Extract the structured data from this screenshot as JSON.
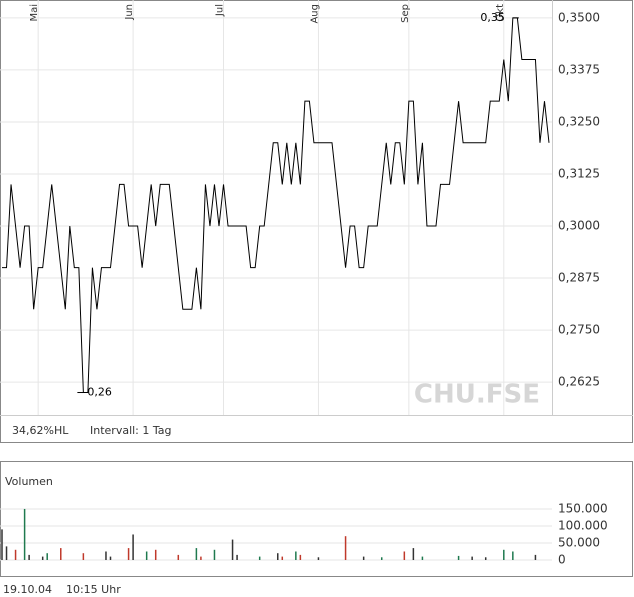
{
  "chart_data": [
    {
      "type": "line",
      "watermark": "CHU.FSE",
      "color": "#000000",
      "values": [
        0.29,
        0.29,
        0.31,
        0.3,
        0.29,
        0.3,
        0.3,
        0.28,
        0.29,
        0.29,
        0.3,
        0.31,
        0.3,
        0.29,
        0.28,
        0.3,
        0.29,
        0.29,
        0.26,
        0.26,
        0.29,
        0.28,
        0.29,
        0.29,
        0.29,
        0.3,
        0.31,
        0.31,
        0.3,
        0.3,
        0.3,
        0.29,
        0.3,
        0.31,
        0.3,
        0.31,
        0.31,
        0.31,
        0.3,
        0.29,
        0.28,
        0.28,
        0.28,
        0.29,
        0.28,
        0.31,
        0.3,
        0.31,
        0.3,
        0.31,
        0.3,
        0.3,
        0.3,
        0.3,
        0.3,
        0.29,
        0.29,
        0.3,
        0.3,
        0.31,
        0.32,
        0.32,
        0.31,
        0.32,
        0.31,
        0.32,
        0.31,
        0.33,
        0.33,
        0.32,
        0.32,
        0.32,
        0.32,
        0.32,
        0.31,
        0.3,
        0.29,
        0.3,
        0.3,
        0.29,
        0.29,
        0.3,
        0.3,
        0.3,
        0.31,
        0.32,
        0.31,
        0.32,
        0.32,
        0.31,
        0.33,
        0.33,
        0.31,
        0.32,
        0.3,
        0.3,
        0.3,
        0.31,
        0.31,
        0.31,
        0.32,
        0.33,
        0.32,
        0.32,
        0.32,
        0.32,
        0.32,
        0.32,
        0.33,
        0.33,
        0.33,
        0.34,
        0.33,
        0.35,
        0.35,
        0.34,
        0.34,
        0.34,
        0.34,
        0.32,
        0.33,
        0.32
      ],
      "xlim": [
        0,
        121
      ],
      "xticks": [
        {
          "value": 8,
          "label": "Mai"
        },
        {
          "value": 29,
          "label": "Jun"
        },
        {
          "value": 49,
          "label": "Jul"
        },
        {
          "value": 70,
          "label": "Aug"
        },
        {
          "value": 90,
          "label": "Sep"
        },
        {
          "value": 111,
          "label": "Okt"
        }
      ],
      "ylim": [
        0.2546,
        0.3543
      ],
      "yticks": [
        {
          "value": 0.2625,
          "label": "0,2625"
        },
        {
          "value": 0.275,
          "label": "0,2750"
        },
        {
          "value": 0.2875,
          "label": "0,2875"
        },
        {
          "value": 0.3,
          "label": "0,3000"
        },
        {
          "value": 0.3125,
          "label": "0,3125"
        },
        {
          "value": 0.325,
          "label": "0,3250"
        },
        {
          "value": 0.3375,
          "label": "0,3375"
        },
        {
          "value": 0.35,
          "label": "0,3500"
        }
      ],
      "annotations": [
        {
          "label": "0,35",
          "x": 113,
          "value": 0.35
        },
        {
          "label": "0,26",
          "x": 18,
          "value": 0.26
        }
      ],
      "grid": true,
      "footer": {
        "range": "34,62%HL",
        "interval": "Intervall: 1 Tag"
      }
    },
    {
      "type": "bar",
      "title": "Volumen",
      "up_color": "#1f7a4f",
      "down_color": "#c0392b",
      "flat_color": "#333333",
      "values": [
        90000,
        40000,
        0,
        30000,
        0,
        150000,
        15000,
        0,
        0,
        10000,
        20000,
        0,
        0,
        35000,
        0,
        0,
        0,
        0,
        20000,
        0,
        0,
        0,
        0,
        25000,
        10000,
        0,
        0,
        0,
        35000,
        75000,
        0,
        0,
        25000,
        0,
        30000,
        0,
        0,
        0,
        0,
        15000,
        0,
        0,
        0,
        35000,
        10000,
        0,
        0,
        30000,
        0,
        0,
        0,
        60000,
        15000,
        0,
        0,
        0,
        0,
        10000,
        0,
        0,
        0,
        20000,
        10000,
        0,
        0,
        25000,
        15000,
        0,
        0,
        0,
        8000,
        0,
        0,
        0,
        0,
        0,
        70000,
        0,
        0,
        0,
        10000,
        0,
        0,
        0,
        8000,
        0,
        0,
        0,
        0,
        25000,
        0,
        35000,
        0,
        10000,
        0,
        0,
        0,
        0,
        0,
        0,
        0,
        12000,
        0,
        0,
        10000,
        0,
        0,
        8000,
        0,
        0,
        0,
        30000,
        0,
        25000,
        0,
        0,
        0,
        0,
        15000,
        0,
        0,
        0
      ],
      "ylim": [
        0,
        191000
      ],
      "yticks": [
        0,
        {
          "value": 50000,
          "label": "50.000"
        },
        {
          "value": 100000,
          "label": "100.000"
        },
        {
          "value": 150000,
          "label": "150.000"
        }
      ],
      "grid": true
    }
  ],
  "timestamp": "19.10.04    10:15 Uhr"
}
